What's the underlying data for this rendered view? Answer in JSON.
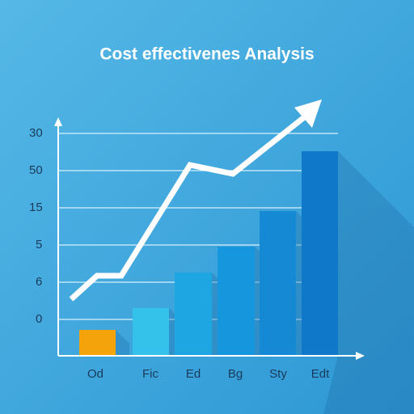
{
  "title": "Cost effectivenes Analysis",
  "y_labels": [
    "30",
    "50",
    "15",
    "5",
    "6",
    "0"
  ],
  "x_labels": [
    "Od",
    "Fic",
    "Ed",
    "Bg",
    "Sty",
    "Edt"
  ]
}
